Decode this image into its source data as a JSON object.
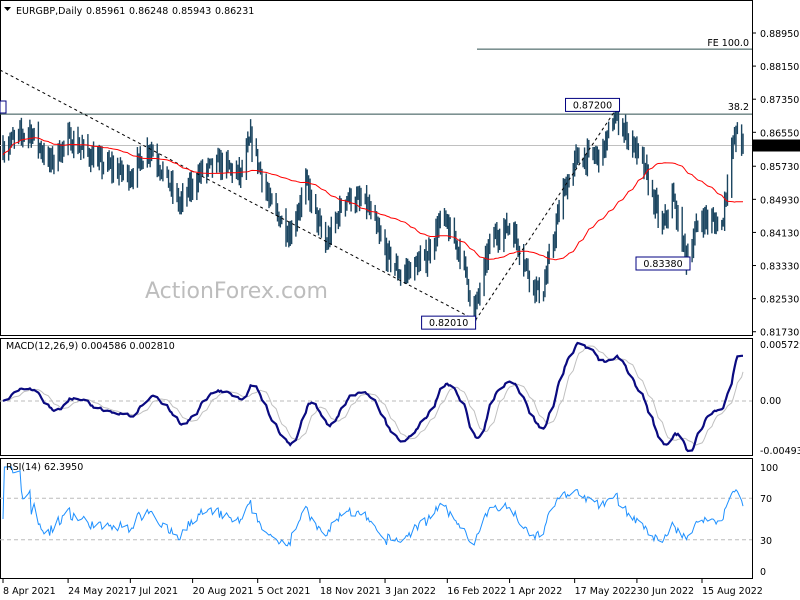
{
  "chart_data": [
    {
      "type": "ohlc",
      "title": "EURGBP,Daily",
      "ohlc_readout": [
        "0.85961",
        "0.86248",
        "0.85943",
        "0.86231"
      ],
      "current_price": 0.86231,
      "current_price_label": "0.86231",
      "ylim": [
        0.8173,
        0.8935
      ],
      "y_ticks": [
        "0.88950",
        "0.88150",
        "0.87350",
        "0.86550",
        "0.85730",
        "0.84930",
        "0.84130",
        "0.83330",
        "0.82530",
        "0.81730"
      ],
      "x_ticks": [
        "8 Apr 2021",
        "24 May 2021",
        "7 Jul 2021",
        "20 Aug 2021",
        "5 Oct 2021",
        "18 Nov 2021",
        "3 Jan 2022",
        "16 Feb 2022",
        "1 Apr 2022",
        "17 May 2022",
        "30 Jun 2022",
        "15 Aug 2022"
      ],
      "x_tick_dates": [
        "2021-04-08",
        "2021-05-24",
        "2021-07-07",
        "2021-08-20",
        "2021-10-05",
        "2021-11-18",
        "2022-01-03",
        "2022-02-16",
        "2022-04-01",
        "2022-05-17",
        "2022-06-30",
        "2022-08-15"
      ],
      "key_closes": [
        [
          "2021-04-08",
          0.862
        ],
        [
          "2021-04-27",
          0.866
        ],
        [
          "2021-05-11",
          0.858
        ],
        [
          "2021-05-25",
          0.864
        ],
        [
          "2021-06-16",
          0.858
        ],
        [
          "2021-07-07",
          0.855
        ],
        [
          "2021-07-21",
          0.862
        ],
        [
          "2021-08-11",
          0.848
        ],
        [
          "2021-08-26",
          0.856
        ],
        [
          "2021-09-09",
          0.858
        ],
        [
          "2021-09-23",
          0.855
        ],
        [
          "2021-09-30",
          0.864
        ],
        [
          "2021-10-14",
          0.848
        ],
        [
          "2021-10-28",
          0.841
        ],
        [
          "2021-11-08",
          0.853
        ],
        [
          "2021-11-22",
          0.838
        ],
        [
          "2021-12-06",
          0.85
        ],
        [
          "2021-12-21",
          0.848
        ],
        [
          "2022-01-04",
          0.836
        ],
        [
          "2022-01-14",
          0.831
        ],
        [
          "2022-02-01",
          0.835
        ],
        [
          "2022-02-12",
          0.845
        ],
        [
          "2022-02-26",
          0.836
        ],
        [
          "2022-03-07",
          0.8215
        ],
        [
          "2022-03-19",
          0.84
        ],
        [
          "2022-04-02",
          0.843
        ],
        [
          "2022-04-17",
          0.829
        ],
        [
          "2022-04-24",
          0.826
        ],
        [
          "2022-05-08",
          0.85
        ],
        [
          "2022-05-18",
          0.859
        ],
        [
          "2022-06-05",
          0.86
        ],
        [
          "2022-06-15",
          0.87
        ],
        [
          "2022-07-04",
          0.858
        ],
        [
          "2022-07-18",
          0.842
        ],
        [
          "2022-07-25",
          0.85
        ],
        [
          "2022-08-04",
          0.835
        ],
        [
          "2022-08-14",
          0.845
        ],
        [
          "2022-08-29",
          0.843
        ],
        [
          "2022-09-04",
          0.86
        ],
        [
          "2022-09-09",
          0.866
        ],
        [
          "2022-09-13",
          0.8623
        ]
      ],
      "moving_average_color": "#ff0000",
      "bar_color": "#1b4560",
      "annotations": {
        "high_label": "0.87200",
        "high_value": 0.872,
        "low_label": "0.82010",
        "low_value": 0.8201,
        "low2_label": "0.83380",
        "low2_value": 0.8338,
        "fib_382_label": "38.2",
        "fib_382_value": 0.8699,
        "fe_100_label": "FE 100.0",
        "fe_100_value": 0.8856
      },
      "watermark": "ActionForex.com"
    },
    {
      "type": "line",
      "title": "MACD(12,26,9) 0.004586 0.002810",
      "ylim": [
        -0.00493,
        0.005729
      ],
      "y_ticks": [
        "0.005729",
        "0.00",
        "-0.00493"
      ],
      "colors": {
        "macd": "#0a0a80",
        "signal": "#c0c0c0"
      }
    },
    {
      "type": "line",
      "title": "RSI(14) 62.3950",
      "ylim": [
        0,
        100
      ],
      "y_ticks": [
        "100",
        "70",
        "30",
        "0"
      ],
      "levels": [
        70,
        30
      ],
      "color": "#1e90ff"
    }
  ]
}
